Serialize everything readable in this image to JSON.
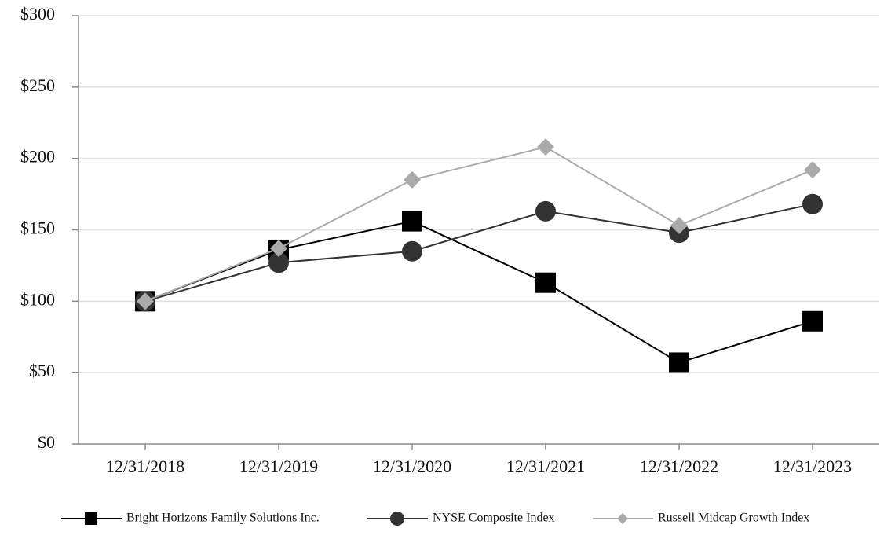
{
  "chart_data": {
    "type": "line",
    "categories": [
      "12/31/2018",
      "12/31/2019",
      "12/31/2020",
      "12/31/2021",
      "12/31/2022",
      "12/31/2023"
    ],
    "series": [
      {
        "name": "Bright Horizons Family Solutions Inc.",
        "color": "#000000",
        "marker": "square",
        "values": [
          100,
          136,
          156,
          113,
          57,
          86
        ]
      },
      {
        "name": "NYSE Composite Index",
        "color": "#333333",
        "marker": "circle",
        "values": [
          100,
          127,
          135,
          163,
          148,
          168
        ]
      },
      {
        "name": "Russell Midcap Growth Index",
        "color": "#aaaaaa",
        "marker": "diamond",
        "values": [
          100,
          137,
          185,
          208,
          153,
          192
        ]
      }
    ],
    "ylim": [
      0,
      300
    ],
    "yticks": [
      {
        "value": 0,
        "label": "$0"
      },
      {
        "value": 50,
        "label": "$50"
      },
      {
        "value": 100,
        "label": "$100"
      },
      {
        "value": 150,
        "label": "$150"
      },
      {
        "value": 200,
        "label": "$200"
      },
      {
        "value": 250,
        "label": "$250"
      },
      {
        "value": 300,
        "label": "$300"
      }
    ],
    "grid": true,
    "legend": "bottom"
  }
}
